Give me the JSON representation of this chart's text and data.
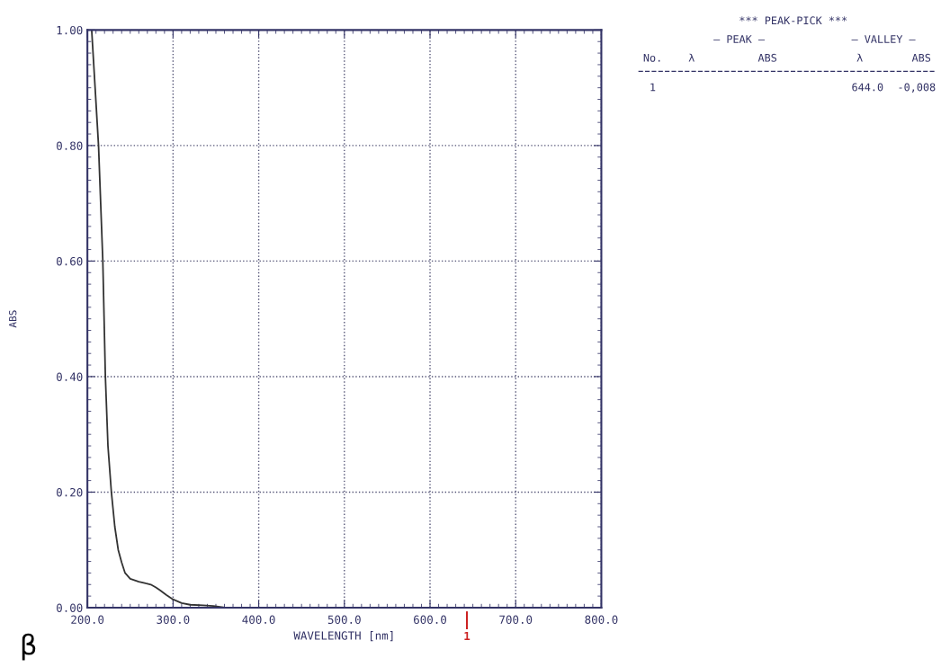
{
  "chart_data": {
    "type": "line",
    "xlabel": "WAVELENGTH [nm]",
    "ylabel": "ABS",
    "xlim": [
      200,
      800
    ],
    "ylim": [
      0,
      1
    ],
    "xticks": [
      {
        "value": 200,
        "label": "200.0"
      },
      {
        "value": 300,
        "label": "300.0"
      },
      {
        "value": 400,
        "label": "400.0"
      },
      {
        "value": 500,
        "label": "500.0"
      },
      {
        "value": 600,
        "label": "600.0"
      },
      {
        "value": 700,
        "label": "700.0"
      },
      {
        "value": 800,
        "label": "800.0"
      }
    ],
    "yticks": [
      {
        "value": 0,
        "label": "0.00"
      },
      {
        "value": 0.2,
        "label": "0.20"
      },
      {
        "value": 0.4,
        "label": "0.40"
      },
      {
        "value": 0.6,
        "label": "0.60"
      },
      {
        "value": 0.8,
        "label": "0.80"
      },
      {
        "value": 1,
        "label": "1.00"
      }
    ],
    "grid": true,
    "marker": "none",
    "line_style": "solid",
    "series": [
      {
        "color": "#333333",
        "x": [
          205,
          209,
          213,
          218,
          221,
          224,
          228,
          232,
          236,
          240,
          244,
          250,
          260,
          268,
          274,
          280,
          285,
          292,
          299,
          310,
          320,
          335,
          347,
          361,
          400,
          500,
          600,
          644,
          700,
          800
        ],
        "values": [
          1.0,
          0.9,
          0.8,
          0.6,
          0.4,
          0.28,
          0.2,
          0.14,
          0.1,
          0.078,
          0.06,
          0.05,
          0.045,
          0.042,
          0.04,
          0.035,
          0.03,
          0.022,
          0.015,
          0.008,
          0.005,
          0.004,
          0.003,
          0.0,
          0.0,
          0.0,
          0.0,
          0.0,
          0.0,
          0.0
        ]
      }
    ],
    "annotations": [
      "1",
      "*** PEAK-PICK ***",
      "— PEAK —",
      "— VALLEY —",
      "No.",
      "λ",
      "ABS",
      "λ",
      "ABS",
      "1",
      "644.0",
      "-0,008",
      "β"
    ]
  }
}
